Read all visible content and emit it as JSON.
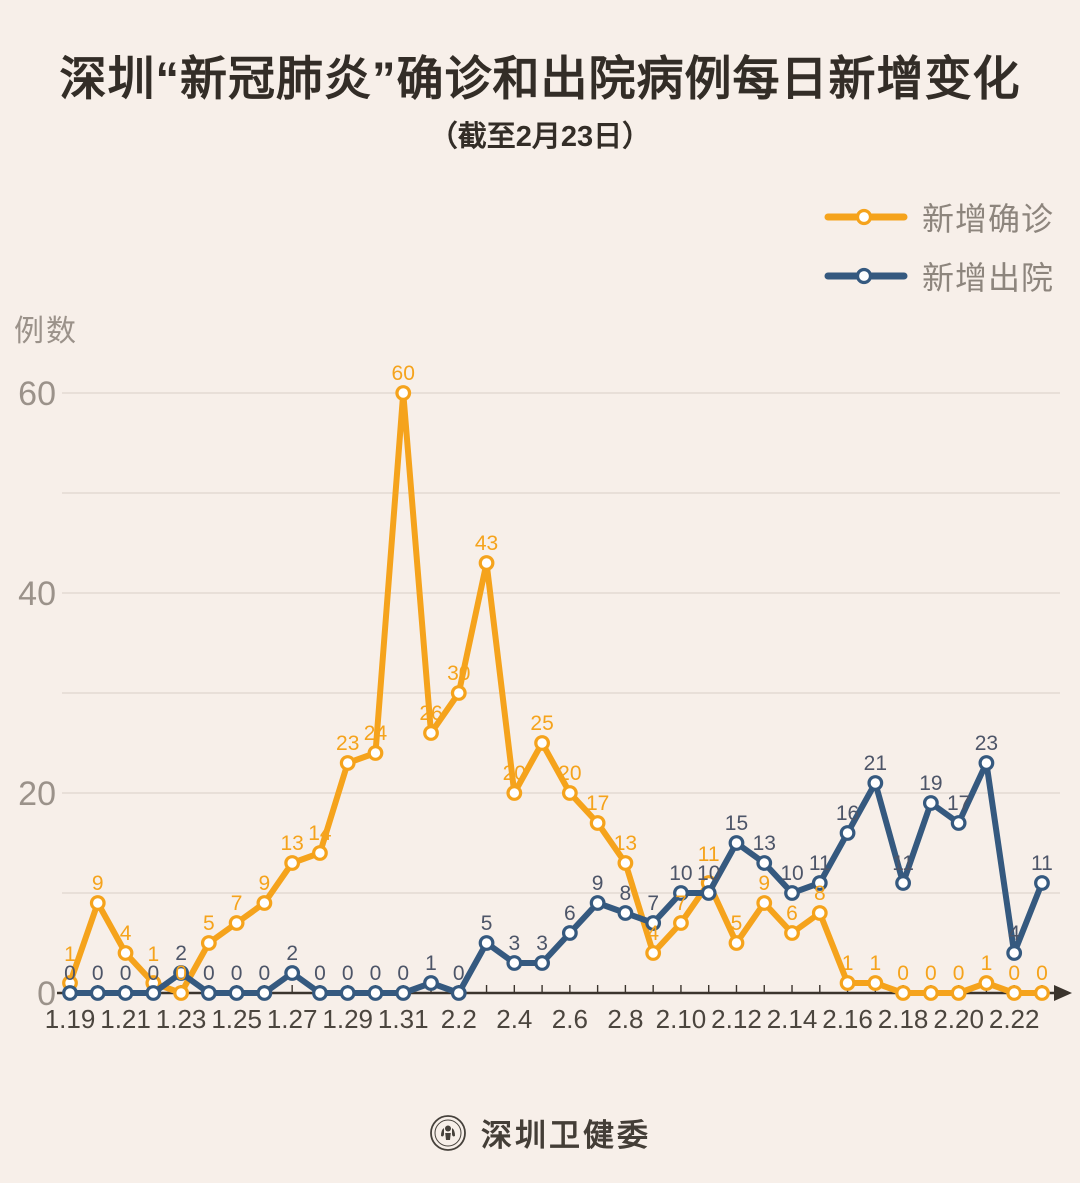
{
  "header": {
    "title": "深圳“新冠肺炎”确诊和出院病例每日新增变化",
    "subtitle": "（截至2月23日）"
  },
  "theme": {
    "background": "#f7efe9",
    "grid_color": "#ded5cd",
    "axis_color": "#3b342d",
    "y_tick_color": "#9b928a",
    "x_tick_color": "#4b453e",
    "confirmed_color": "#f5a31c",
    "discharged_color": "#35597f",
    "discharged_label_color": "#4d5568"
  },
  "chart_data": {
    "type": "line",
    "ylabel": "例数",
    "ylim": [
      0,
      60
    ],
    "yticks": [
      0,
      20,
      40,
      60
    ],
    "gridlines": [
      10,
      20,
      30,
      40,
      50,
      60
    ],
    "grid": "horizontal",
    "legend_position": "top-right",
    "point_labels": "all",
    "x": [
      "1.19",
      "1.20",
      "1.21",
      "1.22",
      "1.23",
      "1.24",
      "1.25",
      "1.26",
      "1.27",
      "1.28",
      "1.29",
      "1.30",
      "1.31",
      "2.1",
      "2.2",
      "2.3",
      "2.4",
      "2.5",
      "2.6",
      "2.7",
      "2.8",
      "2.9",
      "2.10",
      "2.11",
      "2.12",
      "2.13",
      "2.14",
      "2.15",
      "2.16",
      "2.17",
      "2.18",
      "2.19",
      "2.20",
      "2.21",
      "2.22",
      "2.23"
    ],
    "x_labeled_every": 2,
    "series": [
      {
        "key": "confirmed",
        "name": "新增确诊",
        "color": "#f5a31c",
        "label_color": "#f5a31c",
        "values": [
          1,
          9,
          4,
          1,
          0,
          5,
          7,
          9,
          13,
          14,
          23,
          24,
          60,
          26,
          30,
          43,
          20,
          25,
          20,
          17,
          13,
          4,
          7,
          11,
          5,
          9,
          6,
          8,
          1,
          1,
          0,
          0,
          0,
          1,
          0,
          0
        ]
      },
      {
        "key": "discharged",
        "name": "新增出院",
        "color": "#35597f",
        "label_color": "#4d5568",
        "values": [
          0,
          0,
          0,
          0,
          2,
          0,
          0,
          0,
          2,
          0,
          0,
          0,
          0,
          1,
          0,
          5,
          3,
          3,
          6,
          9,
          8,
          7,
          10,
          10,
          15,
          13,
          10,
          11,
          16,
          21,
          11,
          19,
          17,
          23,
          4,
          11
        ]
      }
    ]
  },
  "footer": {
    "brand": "深圳卫健委",
    "logo": "szhc-emblem"
  }
}
